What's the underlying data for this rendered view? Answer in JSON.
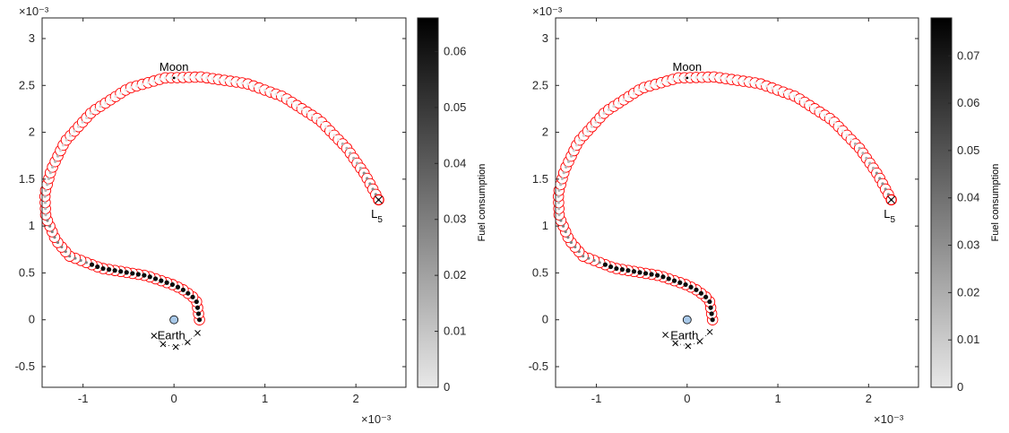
{
  "colors": {
    "marker": "#ff0000",
    "earth_fill": "#a8c8e8",
    "axis": "#262626"
  },
  "chart_data": [
    {
      "type": "scatter",
      "xlim": [
        -0.00145,
        0.00255
      ],
      "ylim": [
        -0.00072,
        0.00322
      ],
      "x_ticks": [
        -0.001,
        0,
        0.001,
        0.002
      ],
      "x_tick_labels": [
        "-1",
        "0",
        "1",
        "2"
      ],
      "y_ticks": [
        -0.0005,
        0,
        0.0005,
        0.001,
        0.0015,
        0.002,
        0.0025,
        0.003
      ],
      "y_tick_labels": [
        "-0.5",
        "0",
        "0.5",
        "1",
        "1.5",
        "2",
        "2.5",
        "3"
      ],
      "x_exponent": "×10⁻³",
      "y_exponent": "×10⁻³",
      "grid": false,
      "bodies": [
        {
          "label": "Earth",
          "x": 0.0,
          "y": 0.0
        },
        {
          "label": "Moon",
          "x": 0.0,
          "y": 0.00258
        }
      ],
      "target": {
        "label": "L",
        "sub": "5",
        "x": 0.00225,
        "y": 0.00128
      },
      "crosses": [
        [
          -0.00022,
          -0.00017
        ],
        [
          -0.00012,
          -0.00026
        ],
        [
          2e-05,
          -0.00029
        ],
        [
          0.00015,
          -0.00024
        ],
        [
          0.00026,
          -0.00014
        ]
      ],
      "path": [
        [
          0.00028,
          0.0
        ],
        [
          0.00025,
          0.00019
        ],
        [
          0.0002,
          0.00025
        ],
        [
          0.0001,
          0.00032
        ],
        [
          0.0,
          0.00037
        ],
        [
          -0.0003,
          0.00047
        ],
        [
          -0.0008,
          0.00055
        ],
        [
          -0.00115,
          0.00068
        ],
        [
          -0.0013,
          0.00085
        ],
        [
          -0.00141,
          0.0011
        ],
        [
          -0.00142,
          0.00135
        ],
        [
          -0.00135,
          0.0016
        ],
        [
          -0.0012,
          0.0019
        ],
        [
          -0.0009,
          0.00222
        ],
        [
          -0.0005,
          0.00247
        ],
        [
          -0.0001,
          0.00258
        ],
        [
          0.0003,
          0.00259
        ],
        [
          0.0008,
          0.00252
        ],
        [
          0.0012,
          0.00238
        ],
        [
          0.0016,
          0.00213
        ],
        [
          0.0019,
          0.00183
        ],
        [
          0.0021,
          0.00155
        ],
        [
          0.00225,
          0.00128
        ]
      ],
      "fuel_weights": [
        [
          0.0,
          0.2,
          0.95
        ],
        [
          0.2,
          0.3,
          0.45
        ],
        [
          0.3,
          0.4,
          0.22
        ],
        [
          0.4,
          0.5,
          0.08
        ],
        [
          0.9,
          0.95,
          0.25
        ],
        [
          0.95,
          1.0,
          0.4
        ]
      ],
      "colorbar": {
        "label": "Fuel consumption",
        "min": 0,
        "max": 0.066,
        "ticks": [
          0,
          0.01,
          0.02,
          0.03,
          0.04,
          0.05,
          0.06
        ],
        "tick_labels": [
          "0",
          "0.01",
          "0.02",
          "0.03",
          "0.04",
          "0.05",
          "0.06"
        ]
      }
    },
    {
      "type": "scatter",
      "xlim": [
        -0.00145,
        0.00255
      ],
      "ylim": [
        -0.00072,
        0.00322
      ],
      "x_ticks": [
        -0.001,
        0,
        0.001,
        0.002
      ],
      "x_tick_labels": [
        "-1",
        "0",
        "1",
        "2"
      ],
      "y_ticks": [
        -0.0005,
        0,
        0.0005,
        0.001,
        0.0015,
        0.002,
        0.0025,
        0.003
      ],
      "y_tick_labels": [
        "-0.5",
        "0",
        "0.5",
        "1",
        "1.5",
        "2",
        "2.5",
        "3"
      ],
      "x_exponent": "×10⁻³",
      "y_exponent": "×10⁻³",
      "grid": false,
      "bodies": [
        {
          "label": "Earth",
          "x": 0.0,
          "y": 0.0
        },
        {
          "label": "Moon",
          "x": 0.0,
          "y": 0.00258
        }
      ],
      "target": {
        "label": "L",
        "sub": "5",
        "x": 0.00225,
        "y": 0.00128
      },
      "crosses": [
        [
          -0.00024,
          -0.00016
        ],
        [
          -0.00013,
          -0.00025
        ],
        [
          1e-05,
          -0.00028
        ],
        [
          0.00014,
          -0.00023
        ],
        [
          0.00025,
          -0.00013
        ]
      ],
      "path": [
        [
          0.00028,
          0.0
        ],
        [
          0.00025,
          0.00019
        ],
        [
          0.0002,
          0.00025
        ],
        [
          0.0001,
          0.00032
        ],
        [
          0.0,
          0.00037
        ],
        [
          -0.0003,
          0.00047
        ],
        [
          -0.0008,
          0.00055
        ],
        [
          -0.00115,
          0.00068
        ],
        [
          -0.0013,
          0.00085
        ],
        [
          -0.00141,
          0.0011
        ],
        [
          -0.00142,
          0.00135
        ],
        [
          -0.00135,
          0.0016
        ],
        [
          -0.0012,
          0.0019
        ],
        [
          -0.0009,
          0.00222
        ],
        [
          -0.0005,
          0.00247
        ],
        [
          -0.0001,
          0.00258
        ],
        [
          0.0003,
          0.00259
        ],
        [
          0.0008,
          0.00252
        ],
        [
          0.0012,
          0.00238
        ],
        [
          0.0016,
          0.00213
        ],
        [
          0.0019,
          0.00183
        ],
        [
          0.0021,
          0.00155
        ],
        [
          0.00225,
          0.00128
        ]
      ],
      "fuel_weights": [
        [
          0.0,
          0.2,
          0.95
        ],
        [
          0.2,
          0.3,
          0.45
        ],
        [
          0.3,
          0.4,
          0.22
        ],
        [
          0.4,
          0.5,
          0.08
        ],
        [
          0.9,
          0.95,
          0.25
        ],
        [
          0.95,
          1.0,
          0.4
        ]
      ],
      "colorbar": {
        "label": "Fuel consumption",
        "min": 0,
        "max": 0.078,
        "ticks": [
          0,
          0.01,
          0.02,
          0.03,
          0.04,
          0.05,
          0.06,
          0.07
        ],
        "tick_labels": [
          "0",
          "0.01",
          "0.02",
          "0.03",
          "0.04",
          "0.05",
          "0.06",
          "0.07"
        ]
      }
    }
  ]
}
